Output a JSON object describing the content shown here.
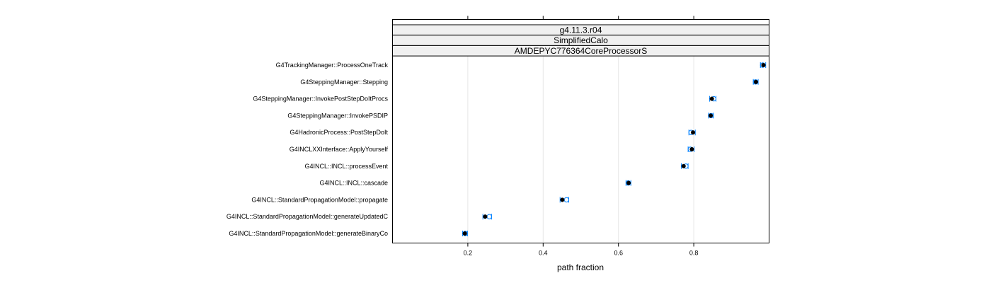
{
  "chart_data": {
    "type": "scatter",
    "strips": [
      "g4.11.3.r04",
      "SimplifiedCalo",
      "AMDEPYC776364CoreProcessorS"
    ],
    "categories": [
      "G4TrackingManager::ProcessOneTrack",
      "G4SteppingManager::Stepping",
      "G4SteppingManager::InvokePostStepDoItProcs",
      "G4SteppingManager::InvokePSDIP",
      "G4HadronicProcess::PostStepDoIt",
      "G4INCLXXInterface::ApplyYourself",
      "G4INCL::INCL::processEvent",
      "G4INCL::INCL::cascade",
      "G4INCL::StandardPropagationModel::propagate",
      "G4INCL::StandardPropagationModel::generateUpdatedC",
      "G4INCL::StandardPropagationModel::generateBinaryCo"
    ],
    "series": [
      {
        "values": [
          0.985,
          0.965,
          0.848,
          0.845,
          0.798,
          0.795,
          0.773,
          0.627,
          0.451,
          0.246,
          0.192
        ],
        "color": "#000000"
      },
      {
        "values": [
          0.983,
          0.964,
          0.853,
          0.846,
          0.793,
          0.791,
          0.779,
          0.626,
          0.462,
          0.257,
          0.193
        ],
        "color": "#0080ff"
      }
    ],
    "xlabel": "path fraction",
    "xticks": [
      0.2,
      0.4,
      0.6,
      0.8
    ],
    "xlim": [
      0,
      1
    ],
    "grid": true
  }
}
